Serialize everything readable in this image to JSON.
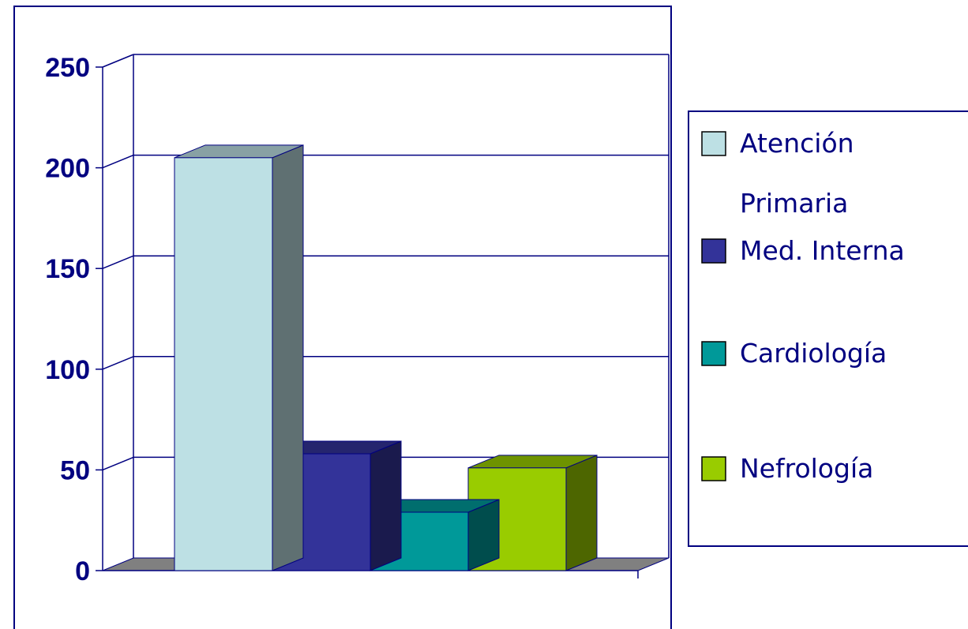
{
  "chart_data": {
    "type": "bar",
    "title": "",
    "xlabel": "",
    "ylabel": "",
    "ylim": [
      0,
      250
    ],
    "y_ticks": [
      "0",
      "50",
      "100",
      "150",
      "200",
      "250"
    ],
    "grid": true,
    "three_d": true,
    "legend_position": "right",
    "series": [
      {
        "name": "Atención Primaria",
        "name_lines": [
          "Atención",
          "Primaria"
        ],
        "value": 205,
        "color": "#BDE0E4"
      },
      {
        "name": "Med. Interna",
        "name_lines": [
          "Med. Interna"
        ],
        "value": 58,
        "color": "#333399"
      },
      {
        "name": "Cardiología",
        "name_lines": [
          "Cardiología"
        ],
        "value": 29,
        "color": "#009999"
      },
      {
        "name": "Nefrología",
        "name_lines": [
          "Nefrología"
        ],
        "value": 51,
        "color": "#99CC00"
      }
    ]
  },
  "colors": {
    "axis": "#000080",
    "gridline": "#000080",
    "floor": "#808080",
    "frame": "#000080"
  }
}
